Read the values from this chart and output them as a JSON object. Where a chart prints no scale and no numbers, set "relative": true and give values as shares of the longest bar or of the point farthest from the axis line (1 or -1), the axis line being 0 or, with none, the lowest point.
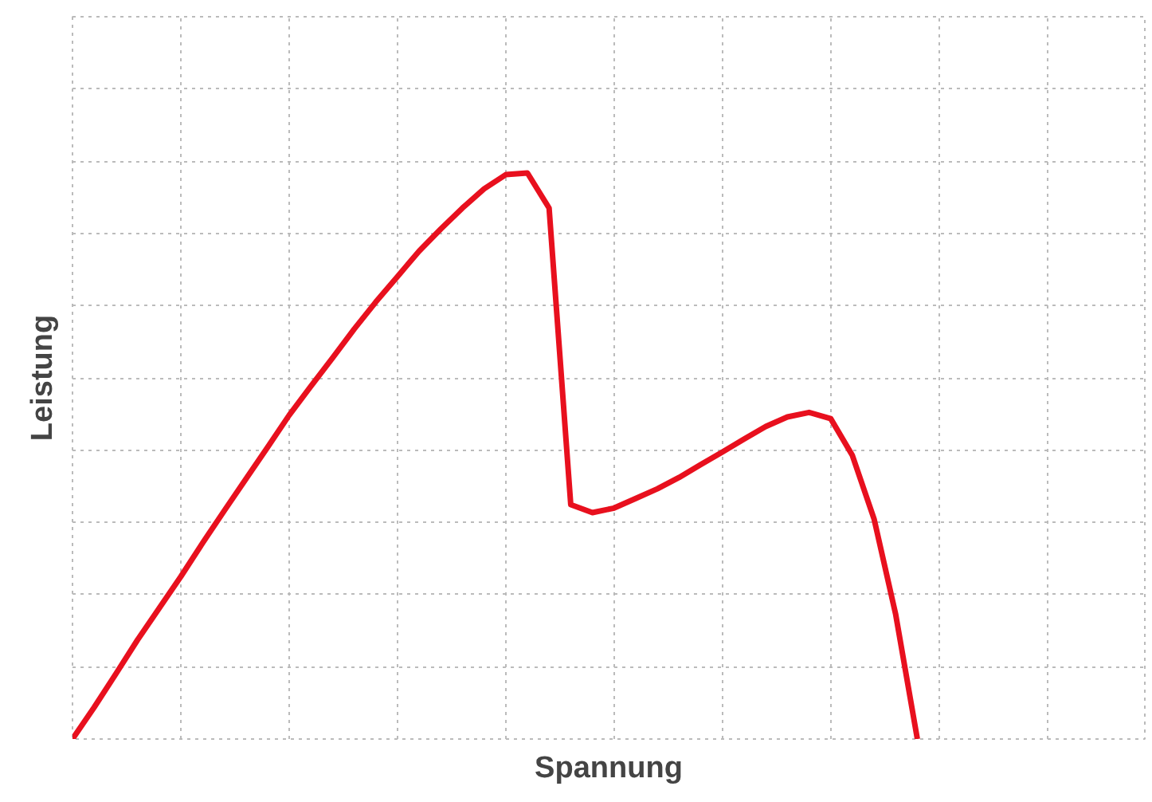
{
  "chart_data": {
    "type": "line",
    "relative": true,
    "xlabel": "Spannung",
    "ylabel": "Leistung",
    "grid": true,
    "marker": "none",
    "line_style": "solid",
    "categories": [
      null,
      null,
      null,
      null,
      null,
      null,
      null,
      null,
      null,
      null,
      null,
      null,
      null,
      null,
      null,
      null,
      null,
      null,
      null,
      null,
      null,
      null,
      null,
      null,
      null,
      null,
      null,
      null,
      null,
      null,
      null,
      null,
      null,
      null,
      null,
      null,
      null,
      null,
      null,
      null,
      null,
      null,
      null,
      null,
      null,
      null,
      null,
      null,
      null,
      null
    ],
    "series": [
      {
        "color": "#e8101e",
        "values": [
          0,
          0.056,
          0.115,
          0.175,
          0.231,
          0.287,
          0.346,
          0.403,
          0.459,
          0.515,
          0.572,
          0.623,
          0.673,
          0.724,
          0.772,
          0.817,
          0.862,
          0.901,
          0.938,
          0.972,
          0.997,
          1,
          0.938,
          0.414,
          0.4,
          0.408,
          0.425,
          0.442,
          0.462,
          0.485,
          0.507,
          0.53,
          0.552,
          0.569,
          0.577,
          0.566,
          0.501,
          0.389,
          0.22,
          0,
          null,
          null,
          null,
          null,
          null,
          null,
          null,
          null,
          null,
          null
        ]
      }
    ]
  }
}
